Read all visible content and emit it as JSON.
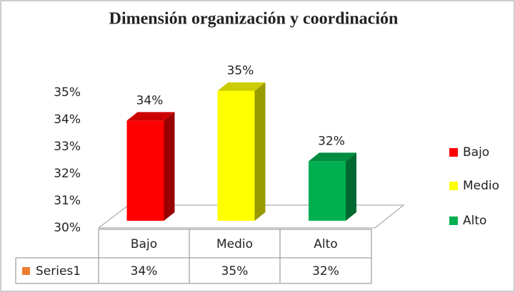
{
  "chart_data": {
    "type": "bar",
    "title": "Dimensión organización y coordinación",
    "categories": [
      "Bajo",
      "Medio",
      "Alto"
    ],
    "colors": [
      "#ff0000",
      "#ffff00",
      "#00b050"
    ],
    "series": [
      {
        "name": "Series1",
        "color": "#ed7d31",
        "values": [
          33.7,
          34.8,
          32.2
        ],
        "value_labels": [
          "34%",
          "35%",
          "32%"
        ]
      }
    ],
    "ylim": [
      30,
      35
    ],
    "yticks": [
      {
        "value": 30,
        "label": "30%"
      },
      {
        "value": 31,
        "label": "31%"
      },
      {
        "value": 32,
        "label": "32%"
      },
      {
        "value": 33,
        "label": "33%"
      },
      {
        "value": 34,
        "label": "34%"
      },
      {
        "value": 35,
        "label": "35%"
      }
    ],
    "legend": "right"
  }
}
